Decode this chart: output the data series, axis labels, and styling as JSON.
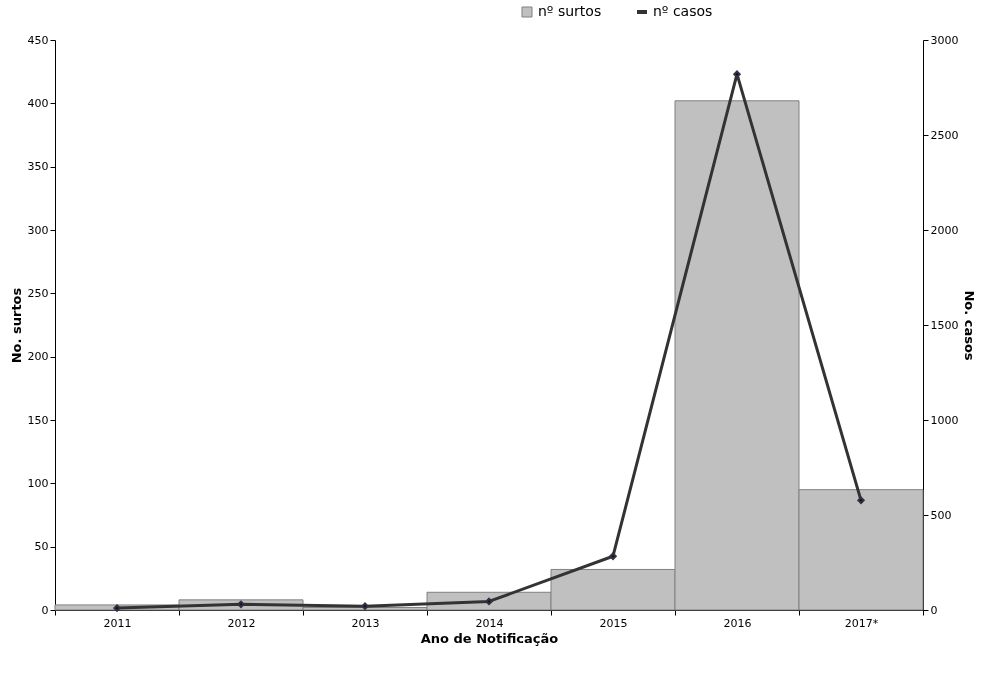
{
  "chart_data": {
    "type": "bar",
    "xlabel": "Ano de Notificação",
    "ylabel": "No. surtos",
    "y2label": "No. casos",
    "categories": [
      "2011",
      "2012",
      "2013",
      "2014",
      "2015",
      "2016",
      "2017*"
    ],
    "series": [
      {
        "name": "nº surtos",
        "color": "#c0c0c0",
        "values": [
          4,
          8,
          2,
          14,
          32,
          402,
          95
        ]
      },
      {
        "name": "nº casos",
        "type": "line",
        "axis": "y2",
        "color": "#333333",
        "values": [
          10,
          30,
          20,
          45,
          283,
          2820,
          577
        ]
      }
    ],
    "ylim": [
      0,
      450
    ],
    "yticks": [
      0,
      50,
      100,
      150,
      200,
      250,
      300,
      350,
      400,
      450
    ],
    "y2lim": [
      0,
      3000
    ],
    "y2ticks": [
      0,
      500,
      1000,
      1500,
      2000,
      2500,
      3000
    ],
    "grid": false,
    "legend": "top right",
    "marker": "diamond",
    "line_style": "solid"
  }
}
